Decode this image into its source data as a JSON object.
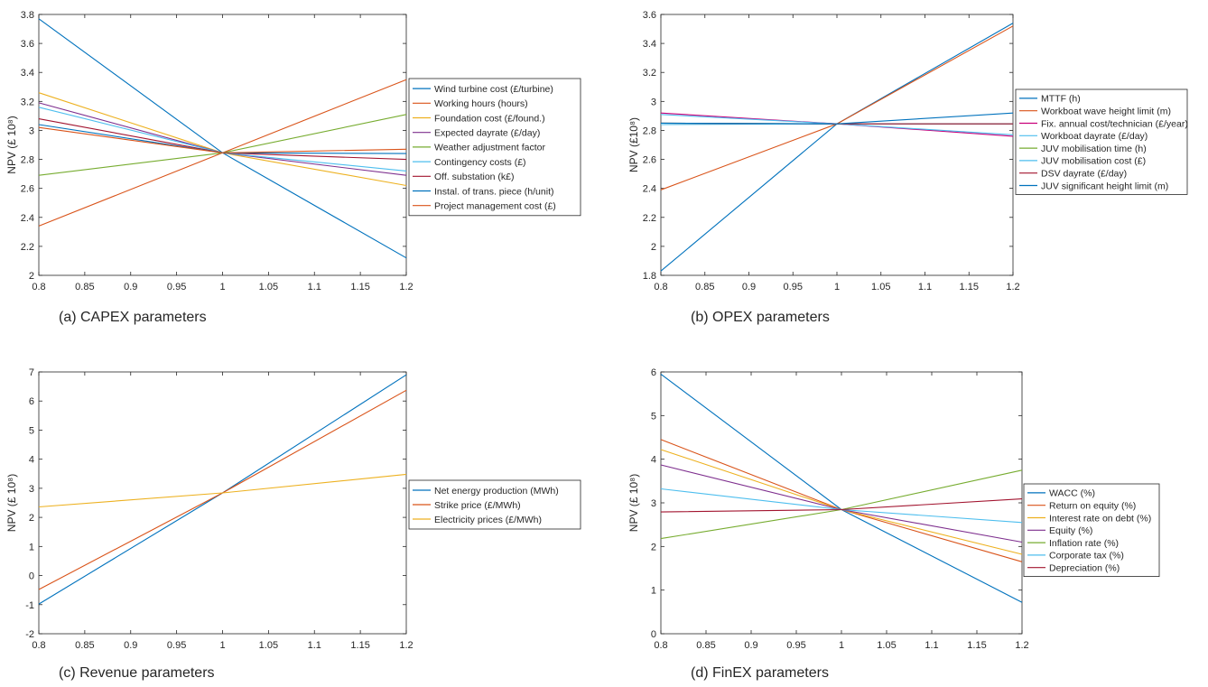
{
  "chart_data": [
    {
      "type": "line",
      "caption": "(a)  CAPEX parameters",
      "ylabel": "NPV (£ 10⁸)",
      "xlim": [
        0.8,
        1.2
      ],
      "ylim": [
        2,
        3.8
      ],
      "xticks": [
        "0.8",
        "0.85",
        "0.9",
        "0.95",
        "1",
        "1.05",
        "1.1",
        "1.15",
        "1.2"
      ],
      "yticks": [
        "2",
        "2.2",
        "2.4",
        "2.6",
        "2.8",
        "3",
        "3.2",
        "3.4",
        "3.6",
        "3.8"
      ],
      "x": [
        0.8,
        1.0,
        1.2
      ],
      "series": [
        {
          "name": "Wind turbine cost (£/turbine)",
          "color": "#0072bd",
          "values": [
            3.77,
            2.845,
            2.12
          ]
        },
        {
          "name": "Working hours (hours)",
          "color": "#d95319",
          "values": [
            2.34,
            2.845,
            3.35
          ]
        },
        {
          "name": "Foundation cost (£/found.)",
          "color": "#edb120",
          "values": [
            3.26,
            2.845,
            2.62
          ]
        },
        {
          "name": "Expected dayrate (£/day)",
          "color": "#7e2f8e",
          "values": [
            3.19,
            2.845,
            2.69
          ]
        },
        {
          "name": "Weather adjustment factor",
          "color": "#77ac30",
          "values": [
            2.69,
            2.845,
            3.11
          ]
        },
        {
          "name": "Contingency costs (£)",
          "color": "#4dbeee",
          "values": [
            3.16,
            2.845,
            2.72
          ]
        },
        {
          "name": "Off. substation (k£)",
          "color": "#a2142f",
          "values": [
            3.08,
            2.845,
            2.8
          ]
        },
        {
          "name": "Instal. of trans. piece (h/unit)",
          "color": "#0072bd",
          "values": [
            3.04,
            2.845,
            2.84
          ]
        },
        {
          "name": "Project management cost (£)",
          "color": "#d95319",
          "values": [
            3.02,
            2.845,
            2.87
          ]
        }
      ]
    },
    {
      "type": "line",
      "caption": "(b)  OPEX parameters",
      "ylabel": "NPV (£10⁸)",
      "xlim": [
        0.8,
        1.2
      ],
      "ylim": [
        1.8,
        3.6
      ],
      "xticks": [
        "0.8",
        "0.85",
        "0.9",
        "0.95",
        "1",
        "1.05",
        "1.1",
        "1.15",
        "1.2"
      ],
      "yticks": [
        "1.8",
        "2",
        "2.2",
        "2.4",
        "2.6",
        "2.8",
        "3",
        "3.2",
        "3.4",
        "3.6"
      ],
      "x": [
        0.8,
        1.0,
        1.2
      ],
      "series": [
        {
          "name": "MTTF (h)",
          "color": "#0072bd",
          "values": [
            1.83,
            2.845,
            3.54
          ]
        },
        {
          "name": "Workboat wave height limit (m)",
          "color": "#d95319",
          "values": [
            2.39,
            2.845,
            3.52
          ]
        },
        {
          "name": "Fix. annual cost/technician (£/year)",
          "color": "#c8007a",
          "values": [
            2.92,
            2.845,
            2.76
          ]
        },
        {
          "name": "Workboat dayrate (£/day)",
          "color": "#4dbeee",
          "values": [
            2.91,
            2.845,
            2.77
          ]
        },
        {
          "name": "JUV mobilisation time (h)",
          "color": "#77ac30",
          "values": [
            2.85,
            2.845,
            2.845
          ]
        },
        {
          "name": "JUV mobilisation cost (£)",
          "color": "#4dbeee",
          "values": [
            2.84,
            2.845,
            2.845
          ]
        },
        {
          "name": "DSV dayrate (£/day)",
          "color": "#a2142f",
          "values": [
            2.85,
            2.845,
            2.845
          ]
        },
        {
          "name": "JUV significant height limit (m)",
          "color": "#0072bd",
          "values": [
            2.85,
            2.845,
            2.92
          ]
        }
      ]
    },
    {
      "type": "line",
      "caption": "(c)  Revenue parameters",
      "ylabel": "NPV (£ 10⁸)",
      "xlim": [
        0.8,
        1.2
      ],
      "ylim": [
        -2,
        7
      ],
      "xticks": [
        "0.8",
        "0.85",
        "0.9",
        "0.95",
        "1",
        "1.05",
        "1.1",
        "1.15",
        "1.2"
      ],
      "yticks": [
        "-2",
        "-1",
        "0",
        "1",
        "2",
        "3",
        "4",
        "5",
        "6",
        "7"
      ],
      "x": [
        0.8,
        1.0,
        1.2
      ],
      "series": [
        {
          "name": "Net energy production (MWh)",
          "color": "#0072bd",
          "values": [
            -0.98,
            2.84,
            6.9
          ]
        },
        {
          "name": "Strike price (£/MWh)",
          "color": "#d95319",
          "values": [
            -0.48,
            2.84,
            6.37
          ]
        },
        {
          "name": "Electricity prices (£/MWh)",
          "color": "#edb120",
          "values": [
            2.36,
            2.84,
            3.48
          ]
        }
      ]
    },
    {
      "type": "line",
      "caption": "(d)  FinEX parameters",
      "ylabel": "NPV (£ 10⁸)",
      "xlim": [
        0.8,
        1.2
      ],
      "ylim": [
        0,
        6
      ],
      "xticks": [
        "0.8",
        "0.85",
        "0.9",
        "0.95",
        "1",
        "1.05",
        "1.1",
        "1.15",
        "1.2"
      ],
      "yticks": [
        "0",
        "1",
        "2",
        "3",
        "4",
        "5",
        "6"
      ],
      "x": [
        0.8,
        1.0,
        1.2
      ],
      "series": [
        {
          "name": "WACC (%)",
          "color": "#0072bd",
          "values": [
            5.95,
            2.845,
            0.72
          ]
        },
        {
          "name": "Return on equity (%)",
          "color": "#d95319",
          "values": [
            4.45,
            2.845,
            1.65
          ]
        },
        {
          "name": "Interest rate on debt (%)",
          "color": "#edb120",
          "values": [
            4.22,
            2.845,
            1.82
          ]
        },
        {
          "name": "Equity (%)",
          "color": "#7e2f8e",
          "values": [
            3.87,
            2.845,
            2.1
          ]
        },
        {
          "name": "Inflation rate (%)",
          "color": "#77ac30",
          "values": [
            2.18,
            2.845,
            3.75
          ]
        },
        {
          "name": "Corporate tax (%)",
          "color": "#4dbeee",
          "values": [
            3.32,
            2.845,
            2.55
          ]
        },
        {
          "name": "Depreciation (%)",
          "color": "#a2142f",
          "values": [
            2.79,
            2.845,
            3.09
          ]
        }
      ]
    }
  ]
}
